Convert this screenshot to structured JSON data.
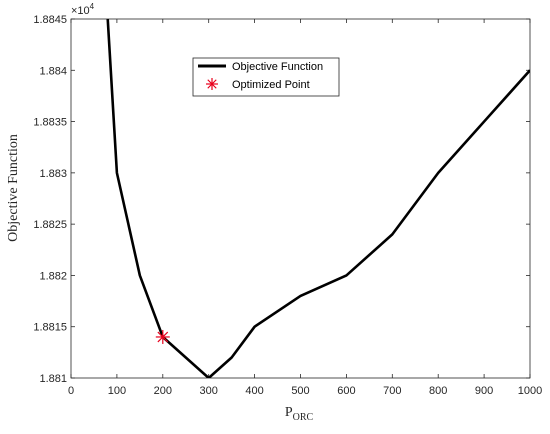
{
  "chart_data": {
    "type": "line",
    "xlabel": "P",
    "xlabel_sub": "ORC",
    "ylabel": "Objective Function",
    "exponent_label": "×10",
    "exponent_power": "4",
    "xlim": [
      0,
      1000
    ],
    "ylim": [
      1.881,
      1.8845
    ],
    "x_ticks": [
      0,
      100,
      200,
      300,
      400,
      500,
      600,
      700,
      800,
      900,
      1000
    ],
    "y_ticks": [
      1.881,
      1.8815,
      1.882,
      1.8825,
      1.883,
      1.8835,
      1.884,
      1.8845
    ],
    "x_tick_labels": [
      "0",
      "100",
      "200",
      "300",
      "400",
      "500",
      "600",
      "700",
      "800",
      "900",
      "1000"
    ],
    "y_tick_labels": [
      "1.881",
      "1.8815",
      "1.882",
      "1.8825",
      "1.883",
      "1.8835",
      "1.884",
      "1.8845"
    ],
    "grid": false,
    "legend_position": "upper-center",
    "series": [
      {
        "name": "Objective Function",
        "color": "#000000",
        "x": [
          80,
          100,
          150,
          200,
          300,
          350,
          400,
          500,
          600,
          700,
          800,
          900,
          1000
        ],
        "y": [
          1.8845,
          1.883,
          1.882,
          1.8814,
          1.881,
          1.8812,
          1.8815,
          1.8818,
          1.882,
          1.8824,
          1.883,
          1.8835,
          1.884
        ]
      }
    ],
    "markers": [
      {
        "name": "Optimized Point",
        "color": "#e8001c",
        "symbol": "asterisk",
        "x": 200,
        "y": 1.8814
      }
    ]
  }
}
